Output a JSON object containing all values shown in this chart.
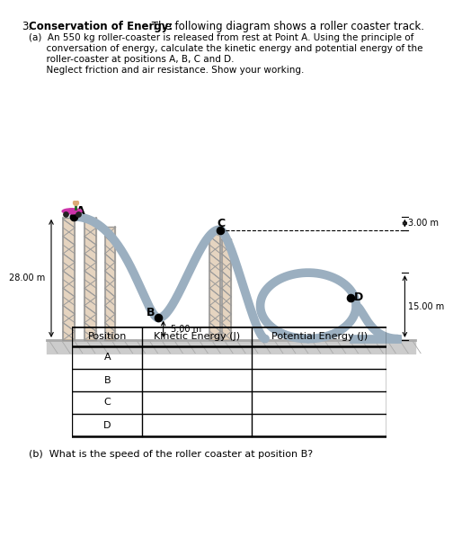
{
  "bg_color": "#ffffff",
  "track_color": "#9bafc0",
  "ground_fill": "#cccccc",
  "ground_line": "#aaaaaa",
  "support_fill": "#d4b896",
  "support_line": "#999999",
  "car_color": "#cc33aa",
  "title_num": "3.",
  "title_bold": "Conservation of Energy:",
  "title_rest": " The following diagram shows a roller coaster track.",
  "line_a1": "(a)  An 550 kg roller-coaster is released from rest at Point A. Using the principle of",
  "line_a2": "      conversation of energy, calculate the kinetic energy and potential energy of the",
  "line_a3": "      roller-coaster at positions A, B, C and D.",
  "line_a4": "      Neglect friction and air resistance. Show your working.",
  "part_b": "(b)  What is the speed of the roller coaster at position B?",
  "label_28": "28.00 m",
  "label_5": "5.00 m",
  "label_3": "3.00 m",
  "label_15": "15.00 m",
  "point_A": "A",
  "point_B": "B",
  "point_C": "C",
  "point_D": "D",
  "table_headers": [
    "Position",
    "Kinetic Energy (J)",
    "Potential Energy (J)"
  ],
  "table_rows": [
    "A",
    "B",
    "C",
    "D"
  ]
}
